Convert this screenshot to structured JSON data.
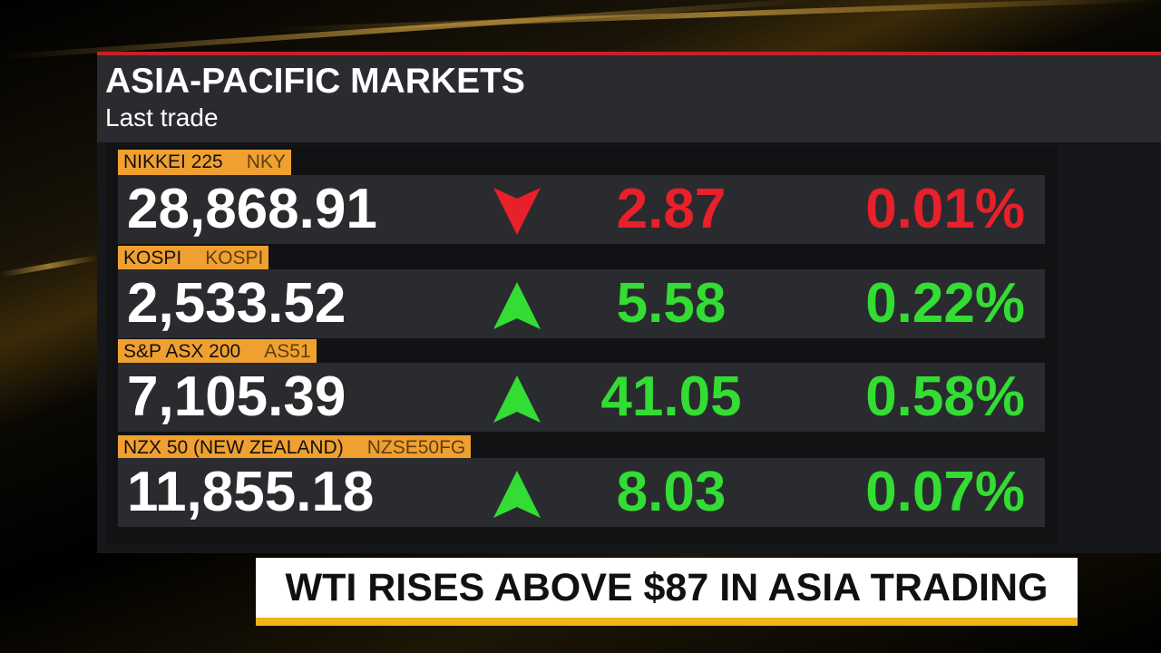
{
  "header": {
    "title": "ASIA-PACIFIC MARKETS",
    "subtitle": "Last trade"
  },
  "colors": {
    "up": "#33dd33",
    "down": "#e8202a"
  },
  "rows": [
    {
      "name": "NIKKEI 225",
      "ticker": "NKY",
      "last": "28,868.91",
      "direction": "down",
      "change": "2.87",
      "percent": "0.01%"
    },
    {
      "name": "KOSPI",
      "ticker": "KOSPI",
      "last": "2,533.52",
      "direction": "up",
      "change": "5.58",
      "percent": "0.22%"
    },
    {
      "name": "S&P ASX 200",
      "ticker": "AS51",
      "last": "7,105.39",
      "direction": "up",
      "change": "41.05",
      "percent": "0.58%"
    },
    {
      "name": "NZX 50 (NEW ZEALAND)",
      "ticker": "NZSE50FG",
      "last": "11,855.18",
      "direction": "up",
      "change": "8.03",
      "percent": "0.07%"
    }
  ],
  "headline": "WTI RISES ABOVE $87 IN ASIA TRADING"
}
